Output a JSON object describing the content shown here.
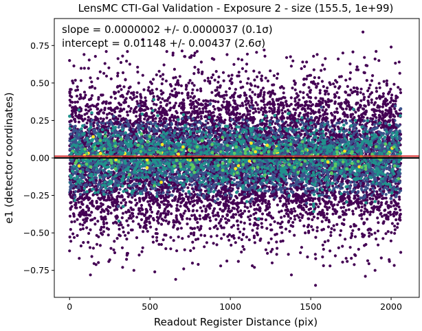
{
  "chart_data": {
    "type": "scatter",
    "title": "LensMC CTI-Gal Validation - Exposure 2 - size (155.5, 1e+99)",
    "xlabel": "Readout Register Distance (pix)",
    "ylabel": "e1 (detector coordinates)",
    "xlim": [
      -95,
      2175
    ],
    "ylim": [
      -0.93,
      0.93
    ],
    "xticks": [
      0,
      500,
      1000,
      1500,
      2000
    ],
    "xtick_labels": [
      "0",
      "500",
      "1000",
      "1500",
      "2000"
    ],
    "yticks": [
      -0.75,
      -0.5,
      -0.25,
      0.0,
      0.25,
      0.5,
      0.75
    ],
    "ytick_labels": [
      "−0.75",
      "−0.50",
      "−0.25",
      "0.00",
      "0.25",
      "0.50",
      "0.75"
    ],
    "annotations": [
      "slope = 0.0000002 +/- 0.0000037 (0.1σ)",
      "intercept = 0.01148 +/- 0.00437 (2.6σ)"
    ],
    "colormap": [
      "#440154",
      "#3b528b",
      "#21918c",
      "#5ec962",
      "#fde725"
    ],
    "fit_line": {
      "slope": 2e-07,
      "intercept": 0.01148,
      "color": "#d62728"
    },
    "reference_line": {
      "y": 0.0,
      "color": "#000000"
    },
    "x_range_of_points": [
      0,
      2060
    ],
    "approx_point_count": 9000,
    "points": [
      [
        456,
        0.79
      ],
      [
        1825,
        0.84
      ],
      [
        90,
        0.69
      ],
      [
        2000,
        0.74
      ],
      [
        1350,
        0.67
      ],
      [
        605,
        0.71
      ],
      [
        1210,
        0.72
      ],
      [
        780,
        0.7
      ],
      [
        1540,
        0.69
      ],
      [
        330,
        0.68
      ],
      [
        1700,
        0.7
      ],
      [
        1050,
        0.66
      ],
      [
        1900,
        0.66
      ],
      [
        220,
        0.63
      ],
      [
        1450,
        0.64
      ],
      [
        0,
        0.65
      ],
      [
        2050,
        0.64
      ],
      [
        660,
        -0.81
      ],
      [
        1530,
        -0.85
      ],
      [
        130,
        -0.78
      ],
      [
        1840,
        -0.79
      ],
      [
        1150,
        -0.73
      ],
      [
        940,
        -0.72
      ],
      [
        1900,
        -0.75
      ],
      [
        400,
        -0.75
      ],
      [
        1380,
        -0.78
      ],
      [
        530,
        -0.76
      ],
      [
        1620,
        -0.72
      ],
      [
        1260,
        -0.7
      ],
      [
        800,
        -0.71
      ],
      [
        0,
        -0.62
      ],
      [
        2060,
        -0.63
      ],
      [
        250,
        -0.68
      ],
      [
        1720,
        -0.67
      ],
      [
        1050,
        -0.69
      ],
      [
        60,
        -0.67
      ],
      [
        710,
        -0.74
      ],
      [
        1480,
        -0.66
      ],
      [
        330,
        -0.73
      ],
      [
        1990,
        -0.69
      ]
    ]
  }
}
